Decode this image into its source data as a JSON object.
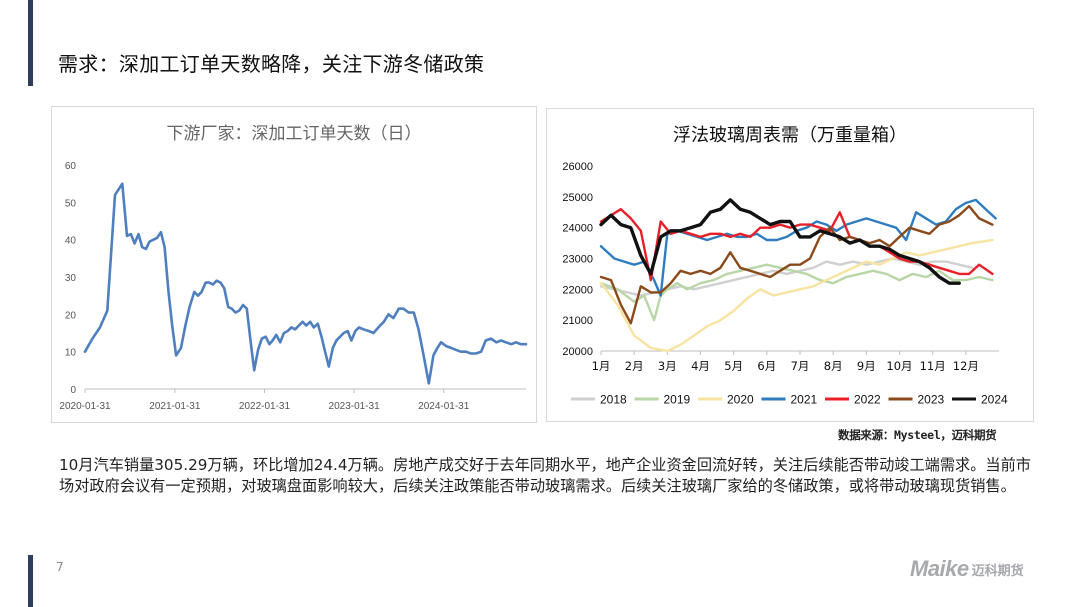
{
  "page": {
    "title": "需求：深加工订单天数略降，关注下游冬储政策",
    "source": "数据来源：Mysteel，迈科期货",
    "body": "10月汽车销量305.29万辆，环比增加24.4万辆。房地产成交好于去年同期水平，地产企业资金回流好转，关注后续能否带动竣工端需求。当前市场对政府会议有一定预期，对玻璃盘面影响较大，后续关注政策能否带动玻璃需求。后续关注玻璃厂家给的冬储政策，或将带动玻璃现货销售。",
    "page_number": "7",
    "logo_mark": "Maike",
    "logo_text": "迈科期货"
  },
  "chart_data": [
    {
      "type": "line",
      "title": "下游厂家：深加工订单天数（日）",
      "xlabel": "",
      "ylabel": "",
      "xlim": [
        "2020-01-31",
        "2024-12-31"
      ],
      "ylim": [
        0,
        60
      ],
      "yticks": [
        0,
        10,
        20,
        30,
        40,
        50,
        60
      ],
      "xticks": [
        "2020-01-31",
        "2021-01-31",
        "2022-01-31",
        "2023-01-31",
        "2024-01-31"
      ],
      "grid": false,
      "color": "#4f7fbf",
      "series": [
        {
          "x": [
            "2020-01-31",
            "2020-03-01",
            "2020-04-01",
            "2020-05-01",
            "2020-06-01",
            "2020-07-01",
            "2020-07-20",
            "2020-08-05",
            "2020-08-20",
            "2020-09-05",
            "2020-09-20",
            "2020-10-05",
            "2020-10-20",
            "2020-11-05",
            "2020-11-20",
            "2020-12-05",
            "2020-12-20",
            "2021-01-05",
            "2021-01-20",
            "2021-02-05",
            "2021-02-25",
            "2021-03-15",
            "2021-04-01",
            "2021-04-20",
            "2021-05-05",
            "2021-05-20",
            "2021-06-05",
            "2021-06-20",
            "2021-07-05",
            "2021-07-20",
            "2021-08-05",
            "2021-08-20",
            "2021-09-05",
            "2021-09-20",
            "2021-10-05",
            "2021-10-20",
            "2021-11-05",
            "2021-11-20",
            "2021-12-05",
            "2021-12-20",
            "2022-01-05",
            "2022-01-20",
            "2022-02-05",
            "2022-02-20",
            "2022-03-05",
            "2022-03-20",
            "2022-04-05",
            "2022-04-20",
            "2022-05-05",
            "2022-05-20",
            "2022-06-05",
            "2022-06-20",
            "2022-07-05",
            "2022-07-20",
            "2022-08-05",
            "2022-08-20",
            "2022-09-05",
            "2022-09-20",
            "2022-10-05",
            "2022-10-20",
            "2022-11-05",
            "2022-11-20",
            "2022-12-05",
            "2022-12-20",
            "2023-01-05",
            "2023-01-20",
            "2023-02-05",
            "2023-02-20",
            "2023-03-10",
            "2023-04-01",
            "2023-04-20",
            "2023-05-10",
            "2023-06-01",
            "2023-06-20",
            "2023-07-10",
            "2023-08-01",
            "2023-08-20",
            "2023-09-10",
            "2023-10-01",
            "2023-10-20",
            "2023-11-10",
            "2023-12-01",
            "2023-12-20",
            "2024-01-05",
            "2024-01-20",
            "2024-02-10",
            "2024-03-01",
            "2024-03-20",
            "2024-04-10",
            "2024-05-01",
            "2024-05-20",
            "2024-06-10",
            "2024-07-01",
            "2024-07-20",
            "2024-08-10",
            "2024-09-01",
            "2024-09-20",
            "2024-10-10",
            "2024-11-01",
            "2024-11-20",
            "2024-12-10",
            "2024-12-31"
          ],
          "values": [
            10,
            13.5,
            16.5,
            21,
            52,
            55,
            41,
            41.5,
            39,
            41.5,
            38,
            37.5,
            39.5,
            40,
            40.5,
            42,
            38,
            26,
            17,
            9,
            11,
            17,
            22,
            26,
            25,
            26,
            28.5,
            28.5,
            28,
            29,
            28.5,
            27,
            22,
            21.5,
            20.5,
            21,
            22.5,
            21.5,
            13,
            5,
            10.5,
            13.5,
            14,
            12,
            13,
            14.5,
            12.5,
            15,
            15.5,
            16.5,
            16,
            17,
            18,
            17,
            18,
            16.5,
            17.5,
            14,
            10,
            6,
            11,
            13,
            14,
            15,
            15.5,
            13,
            15.5,
            16.5,
            16,
            15.5,
            15,
            16.5,
            18,
            20,
            19,
            21.5,
            21.5,
            20.5,
            20.5,
            16,
            9,
            1.5,
            9,
            11,
            12.5,
            11.5,
            11,
            10.5,
            10,
            10,
            9.5,
            9.5,
            10,
            13,
            13.5,
            12.5,
            13,
            12.5,
            12,
            12.5,
            12,
            12
          ]
        }
      ]
    },
    {
      "type": "line",
      "title": "浮法玻璃周表需（万重量箱）",
      "xlabel": "",
      "ylabel": "",
      "categories": [
        "1月",
        "2月",
        "3月",
        "4月",
        "5月",
        "6月",
        "7月",
        "8月",
        "9月",
        "10月",
        "11月",
        "12月"
      ],
      "ylim": [
        20000,
        26000
      ],
      "yticks": [
        20000,
        21000,
        22000,
        23000,
        24000,
        25000,
        26000
      ],
      "grid": false,
      "legend": "bottom",
      "series": [
        {
          "name": "2018",
          "color": "#d0d0d0",
          "x": [
            1,
            1.4,
            1.8,
            2.2,
            2.6,
            3,
            3.4,
            3.8,
            4.2,
            4.6,
            5,
            5.4,
            5.8,
            6.2,
            6.6,
            7,
            7.4,
            7.8,
            8.2,
            8.6,
            9,
            9.4,
            9.8,
            10.2,
            10.6,
            11,
            11.4,
            11.8,
            12.2
          ],
          "values": [
            22100,
            22000,
            21900,
            21800,
            21900,
            22000,
            22100,
            22000,
            22100,
            22200,
            22300,
            22400,
            22500,
            22600,
            22500,
            22600,
            22700,
            22900,
            22800,
            22900,
            22800,
            22900,
            23000,
            22900,
            22800,
            22900,
            22900,
            22800,
            22700
          ]
        },
        {
          "name": "2019",
          "color": "#b9d6a6",
          "x": [
            1,
            1.5,
            2,
            2.3,
            2.6,
            2.8,
            3,
            3.3,
            3.6,
            4,
            4.4,
            4.8,
            5.2,
            5.6,
            6,
            6.4,
            6.8,
            7.2,
            7.6,
            8,
            8.4,
            8.8,
            9.2,
            9.6,
            10,
            10.4,
            10.8,
            11.2,
            11.6,
            12,
            12.4,
            12.8
          ],
          "values": [
            22200,
            22000,
            21600,
            21800,
            21000,
            21800,
            22000,
            22200,
            22000,
            22200,
            22300,
            22500,
            22600,
            22700,
            22800,
            22700,
            22600,
            22500,
            22300,
            22200,
            22400,
            22500,
            22600,
            22500,
            22300,
            22500,
            22400,
            22600,
            22300,
            22300,
            22400,
            22300
          ]
        },
        {
          "name": "2020",
          "color": "#f8e3a0",
          "x": [
            1,
            1.5,
            2,
            2.5,
            3,
            3.4,
            3.8,
            4.2,
            4.6,
            5,
            5.4,
            5.8,
            6.2,
            6.6,
            7,
            7.4,
            7.8,
            8.2,
            8.6,
            9,
            9.4,
            9.8,
            10.2,
            10.6,
            11,
            11.4,
            11.8,
            12.2,
            12.8
          ],
          "values": [
            22200,
            21500,
            20500,
            20100,
            20000,
            20200,
            20500,
            20800,
            21000,
            21300,
            21700,
            22000,
            21800,
            21900,
            22000,
            22100,
            22300,
            22500,
            22700,
            22900,
            22800,
            23000,
            23200,
            23100,
            23200,
            23300,
            23400,
            23500,
            23600
          ]
        },
        {
          "name": "2021",
          "color": "#2f7cc0",
          "x": [
            1,
            1.4,
            1.7,
            2,
            2.3,
            2.6,
            2.8,
            3,
            3.3,
            3.6,
            3.9,
            4.2,
            4.5,
            4.8,
            5.1,
            5.4,
            5.7,
            6,
            6.3,
            6.6,
            6.9,
            7.2,
            7.5,
            7.8,
            8.1,
            8.4,
            8.7,
            9,
            9.3,
            9.6,
            9.9,
            10.2,
            10.5,
            10.8,
            11.1,
            11.4,
            11.7,
            12,
            12.3,
            12.6,
            12.9
          ],
          "values": [
            23400,
            23000,
            22900,
            22800,
            22900,
            22300,
            21800,
            23800,
            23900,
            23800,
            23700,
            23600,
            23700,
            23800,
            23700,
            23700,
            23800,
            23600,
            23600,
            23700,
            23900,
            24000,
            24200,
            24100,
            23900,
            24100,
            24200,
            24300,
            24200,
            24100,
            24000,
            23600,
            24500,
            24300,
            24100,
            24200,
            24600,
            24800,
            24900,
            24600,
            24300
          ]
        },
        {
          "name": "2022",
          "color": "#e8202a",
          "x": [
            1,
            1.3,
            1.6,
            1.9,
            2.2,
            2.5,
            2.8,
            3.1,
            3.4,
            3.7,
            4,
            4.3,
            4.6,
            4.9,
            5.2,
            5.5,
            5.8,
            6.1,
            6.4,
            6.7,
            7,
            7.3,
            7.6,
            7.9,
            8.2,
            8.5,
            8.8,
            9.1,
            9.4,
            9.7,
            10,
            10.3,
            10.6,
            10.9,
            11.2,
            11.5,
            11.8,
            12.1,
            12.4,
            12.8
          ],
          "values": [
            24200,
            24400,
            24600,
            24300,
            23900,
            22300,
            24200,
            23800,
            23900,
            23800,
            23700,
            23800,
            23800,
            23700,
            23800,
            23700,
            24000,
            24000,
            24100,
            24000,
            24100,
            24100,
            24000,
            23900,
            24500,
            23700,
            23600,
            23400,
            23400,
            23200,
            23000,
            22900,
            22900,
            22800,
            22700,
            22600,
            22500,
            22500,
            22800,
            22500
          ]
        },
        {
          "name": "2023",
          "color": "#8b4a1c",
          "x": [
            1,
            1.3,
            1.6,
            1.9,
            2.2,
            2.5,
            2.8,
            3.1,
            3.4,
            3.7,
            4,
            4.3,
            4.6,
            4.9,
            5.2,
            5.5,
            5.8,
            6.1,
            6.4,
            6.7,
            7,
            7.3,
            7.6,
            7.9,
            8.2,
            8.5,
            8.8,
            9.1,
            9.4,
            9.7,
            10,
            10.3,
            10.6,
            10.9,
            11.2,
            11.5,
            11.8,
            12.1,
            12.4,
            12.8
          ],
          "values": [
            22400,
            22300,
            21500,
            20900,
            22100,
            21900,
            21900,
            22200,
            22600,
            22500,
            22600,
            22500,
            22700,
            23200,
            22700,
            22600,
            22500,
            22400,
            22600,
            22800,
            22800,
            23000,
            23700,
            24000,
            23600,
            23700,
            23600,
            23500,
            23600,
            23400,
            23700,
            24000,
            23900,
            23800,
            24100,
            24200,
            24400,
            24700,
            24300,
            24100
          ]
        },
        {
          "name": "2024",
          "color": "#111111",
          "x": [
            1,
            1.3,
            1.6,
            1.9,
            2.2,
            2.5,
            2.8,
            3.1,
            3.4,
            3.7,
            4,
            4.3,
            4.6,
            4.9,
            5.2,
            5.5,
            5.8,
            6.1,
            6.4,
            6.7,
            7,
            7.3,
            7.6,
            7.9,
            8.2,
            8.5,
            8.8,
            9.1,
            9.4,
            9.7,
            10,
            10.3,
            10.6,
            10.9,
            11.2,
            11.5,
            11.8
          ],
          "values": [
            24100,
            24400,
            24100,
            24000,
            23100,
            22500,
            23700,
            23900,
            23900,
            24000,
            24100,
            24500,
            24600,
            24900,
            24600,
            24500,
            24300,
            24100,
            24200,
            24200,
            23700,
            23700,
            23900,
            23800,
            23700,
            23500,
            23600,
            23400,
            23400,
            23300,
            23100,
            23000,
            22900,
            22700,
            22400,
            22200,
            22200
          ]
        }
      ]
    }
  ]
}
